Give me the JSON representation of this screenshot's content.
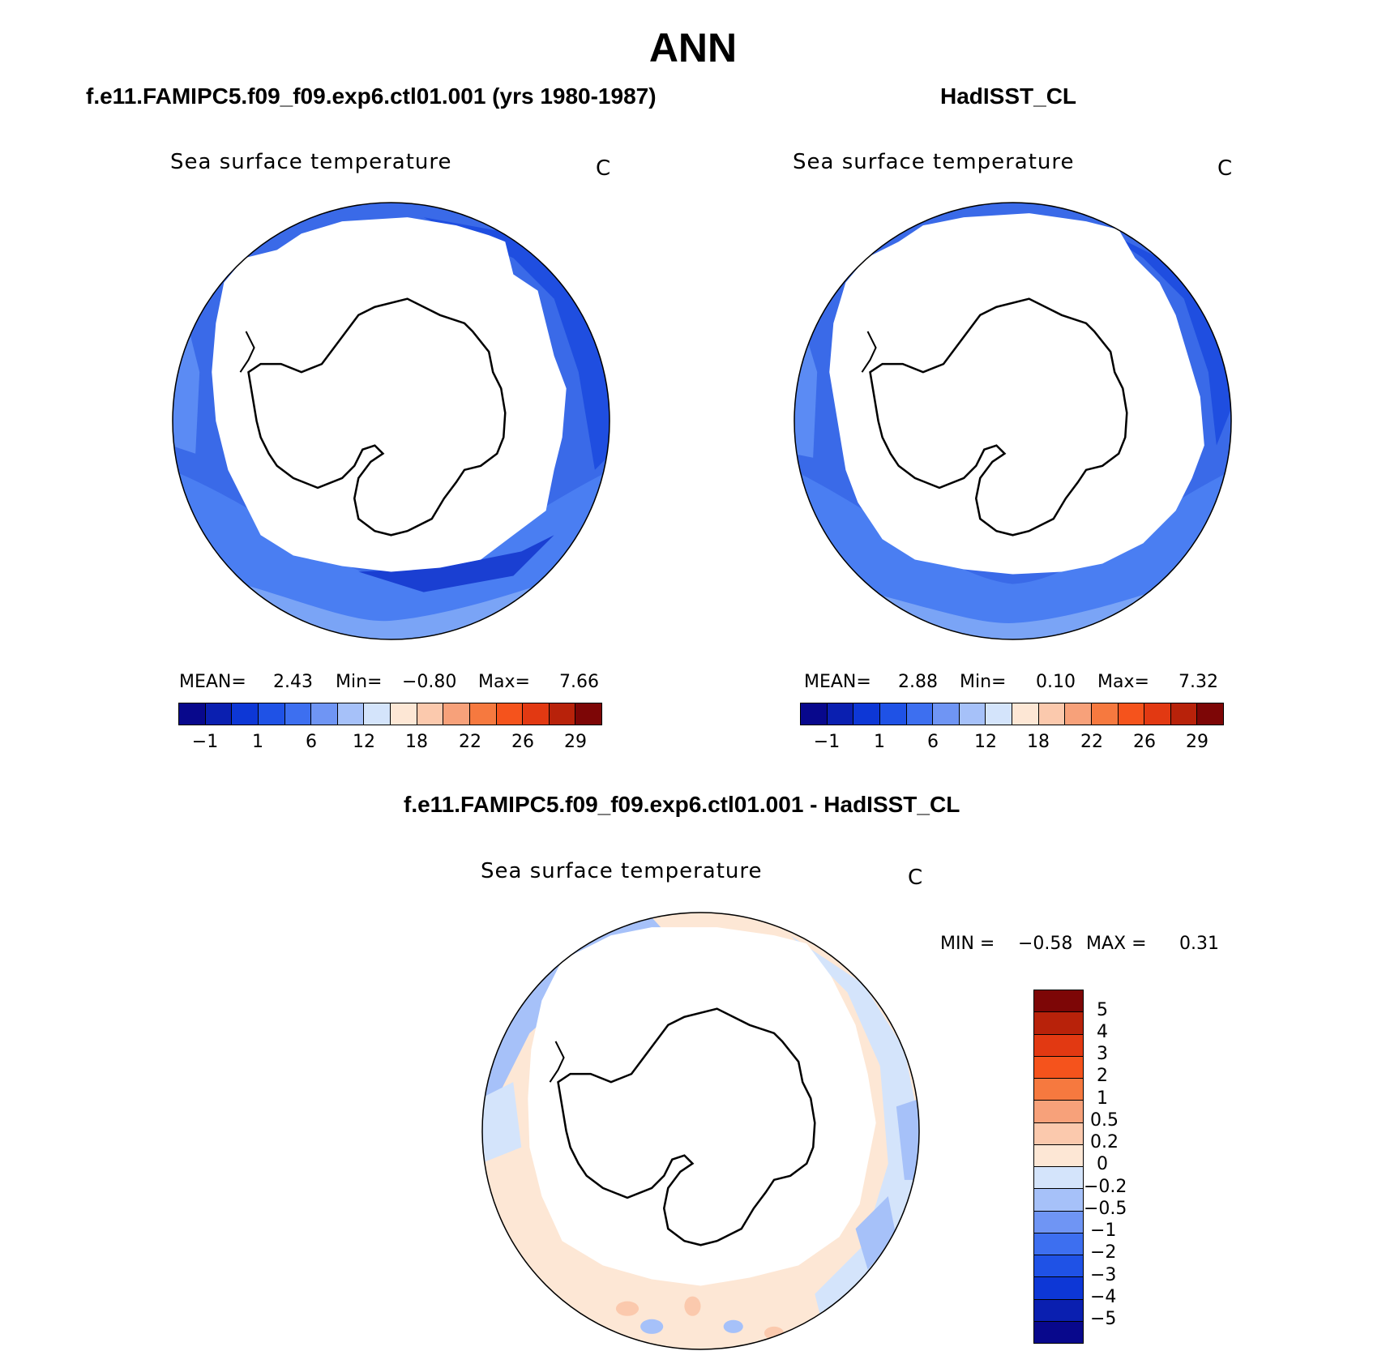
{
  "title": "ANN",
  "panels": [
    {
      "case_title": "f.e11.FAMIPC5.f09_f09.exp6.ctl01.001 (yrs 1980-1987)",
      "variable": "Sea surface temperature",
      "units": "C",
      "stats": {
        "mean_label": "MEAN=",
        "mean": "2.43",
        "min_label": "Min=",
        "min": "−0.80",
        "max_label": "Max=",
        "max": "7.66"
      }
    },
    {
      "case_title": "HadISST_CL",
      "variable": "Sea surface temperature",
      "units": "C",
      "stats": {
        "mean_label": "MEAN=",
        "mean": "2.88",
        "min_label": "Min=",
        "min": "0.10",
        "max_label": "Max=",
        "max": "7.32"
      }
    },
    {
      "case_title": "f.e11.FAMIPC5.f09_f09.exp6.ctl01.001 - HadISST_CL",
      "variable": "Sea surface temperature",
      "units": "C",
      "stats": {
        "min_label": "MIN =",
        "min": "−0.58",
        "max_label": "MAX =",
        "max": "0.31"
      }
    }
  ],
  "colorbar_abs": {
    "colors": [
      "#08088c",
      "#0a1fb0",
      "#0d37d6",
      "#1f52e6",
      "#3d6ff0",
      "#6f95f4",
      "#a6c1f9",
      "#d4e4fb",
      "#fde7d5",
      "#fbc9ad",
      "#f7a17a",
      "#f6793f",
      "#f5531c",
      "#e23912",
      "#b8220a",
      "#7d0606"
    ],
    "tick_labels": [
      "−1",
      "1",
      "6",
      "12",
      "18",
      "22",
      "26",
      "29"
    ]
  },
  "colorbar_diff": {
    "colors": [
      "#7d0606",
      "#b8220a",
      "#e23912",
      "#f5531c",
      "#f6793f",
      "#f7a17a",
      "#fbc9ad",
      "#fde7d5",
      "#d4e4fb",
      "#a6c1f9",
      "#6f95f4",
      "#3d6ff0",
      "#1f52e6",
      "#0d37d6",
      "#0a1fb0",
      "#08088c"
    ],
    "tick_labels": [
      "5",
      "4",
      "3",
      "2",
      "1",
      "0.5",
      "0.2",
      "0",
      "−0.2",
      "−0.5",
      "−1",
      "−2",
      "−3",
      "−4",
      "−5"
    ]
  }
}
